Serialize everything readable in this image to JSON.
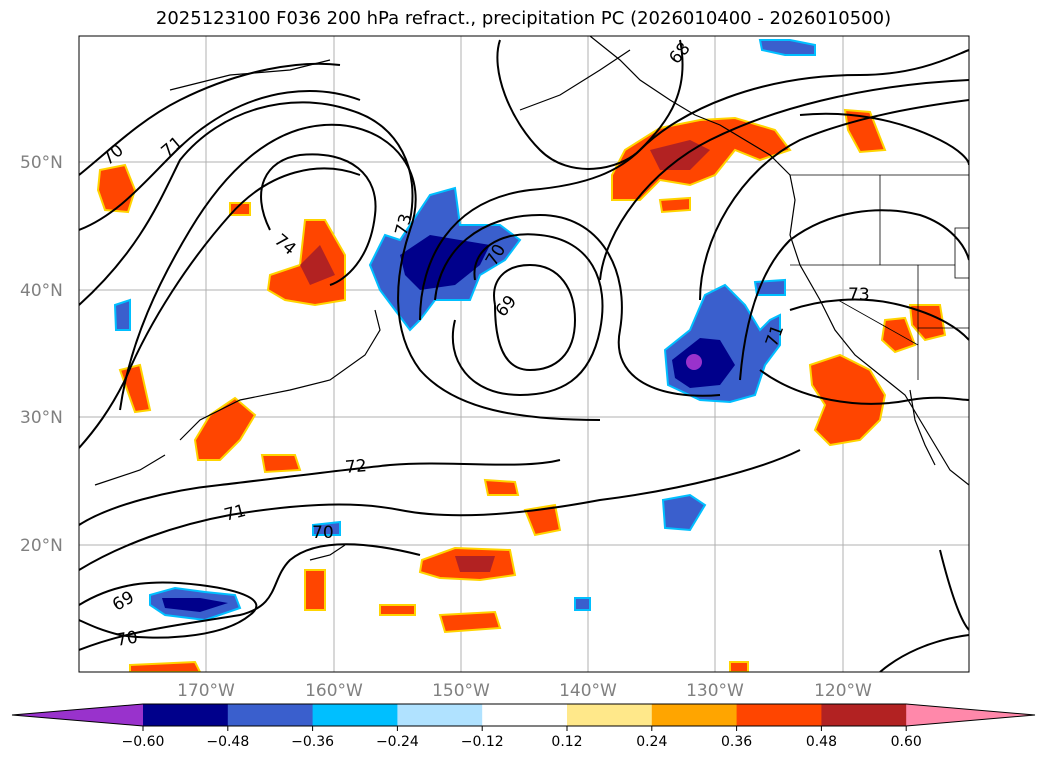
{
  "title": "2025123100 F036 200 hPa refract., precipitation PC (2026010400 - 2026010500)",
  "map": {
    "lat_labels": [
      "50°N",
      "40°N",
      "30°N",
      "20°N"
    ],
    "lon_labels": [
      "170°W",
      "160°W",
      "150°W",
      "140°W",
      "130°W",
      "120°W"
    ],
    "contour_labels": [
      "70",
      "71",
      "74",
      "73",
      "70",
      "69",
      "68",
      "73",
      "71",
      "72",
      "71",
      "70",
      "69",
      "70"
    ]
  },
  "colorbar": {
    "ticks": [
      "−0.60",
      "−0.48",
      "−0.36",
      "−0.24",
      "−0.12",
      "0.12",
      "0.24",
      "0.36",
      "0.48",
      "0.60"
    ],
    "colors": [
      "#9932cc",
      "#00008b",
      "#3a5fcd",
      "#00bfff",
      "#b0e2ff",
      "#ffffff",
      "#ffe88a",
      "#ffa500",
      "#ff4500",
      "#b22222",
      "#ff88aa"
    ]
  }
}
